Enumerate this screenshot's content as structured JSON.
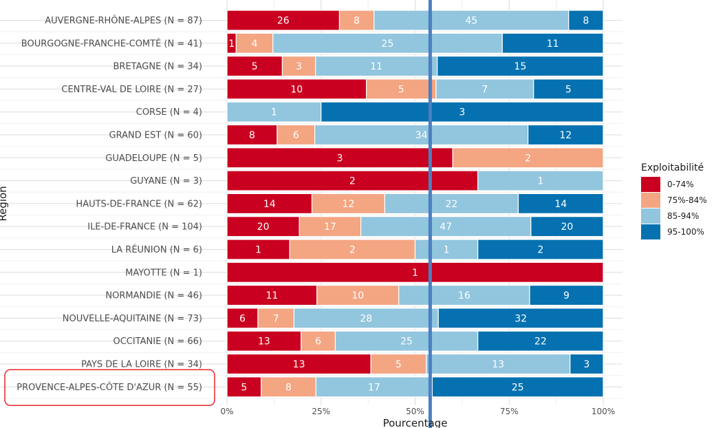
{
  "chart_data": {
    "type": "bar",
    "orientation": "horizontal",
    "stacking": "percent",
    "title": "",
    "xlabel": "Pourcentage",
    "ylabel": "Région",
    "xlim": [
      0,
      100
    ],
    "xticks": [
      "0%",
      "25%",
      "50%",
      "75%",
      "100%"
    ],
    "grid": true,
    "legend_position": "right",
    "legend_title": "Exploitabilité",
    "categories": [
      "AUVERGNE-RHÔNE-ALPES (N = 87)",
      "BOURGOGNE-FRANCHE-COMTÉ (N = 41)",
      "BRETAGNE (N = 34)",
      "CENTRE-VAL DE LOIRE (N = 27)",
      "CORSE (N = 4)",
      "GRAND EST (N = 60)",
      "GUADELOUPE (N = 5)",
      "GUYANE (N = 3)",
      "HAUTS-DE-FRANCE (N = 62)",
      "ILE-DE-FRANCE (N = 104)",
      "LA RÉUNION (N = 6)",
      "MAYOTTE (N = 1)",
      "NORMANDIE (N = 46)",
      "NOUVELLE-AQUITAINE (N = 73)",
      "OCCITANIE (N = 66)",
      "PAYS DE LA LOIRE (N = 34)",
      "PROVENCE-ALPES-CÔTE D'AZUR (N = 55)"
    ],
    "series": [
      {
        "name": "0-74%",
        "color": "#ca0020",
        "values": [
          26,
          1,
          5,
          10,
          0,
          8,
          3,
          2,
          14,
          20,
          1,
          1,
          11,
          6,
          13,
          13,
          5
        ]
      },
      {
        "name": "75%-84%",
        "color": "#f4a582",
        "values": [
          8,
          4,
          3,
          5,
          0,
          6,
          2,
          0,
          12,
          17,
          2,
          0,
          10,
          7,
          6,
          5,
          8
        ]
      },
      {
        "name": "85-94%",
        "color": "#92c5de",
        "values": [
          45,
          25,
          11,
          7,
          1,
          34,
          0,
          1,
          22,
          47,
          1,
          0,
          16,
          28,
          25,
          13,
          17
        ]
      },
      {
        "name": "95-100%",
        "color": "#0571b0",
        "values": [
          8,
          11,
          15,
          5,
          3,
          12,
          0,
          0,
          14,
          20,
          2,
          0,
          9,
          32,
          22,
          3,
          25
        ]
      }
    ],
    "reference_line": {
      "x": 54,
      "color": "#4a7fc1"
    },
    "highlighted_category": "PROVENCE-ALPES-CÔTE D'AZUR (N = 55)",
    "highlight_color": "#e8262d"
  }
}
